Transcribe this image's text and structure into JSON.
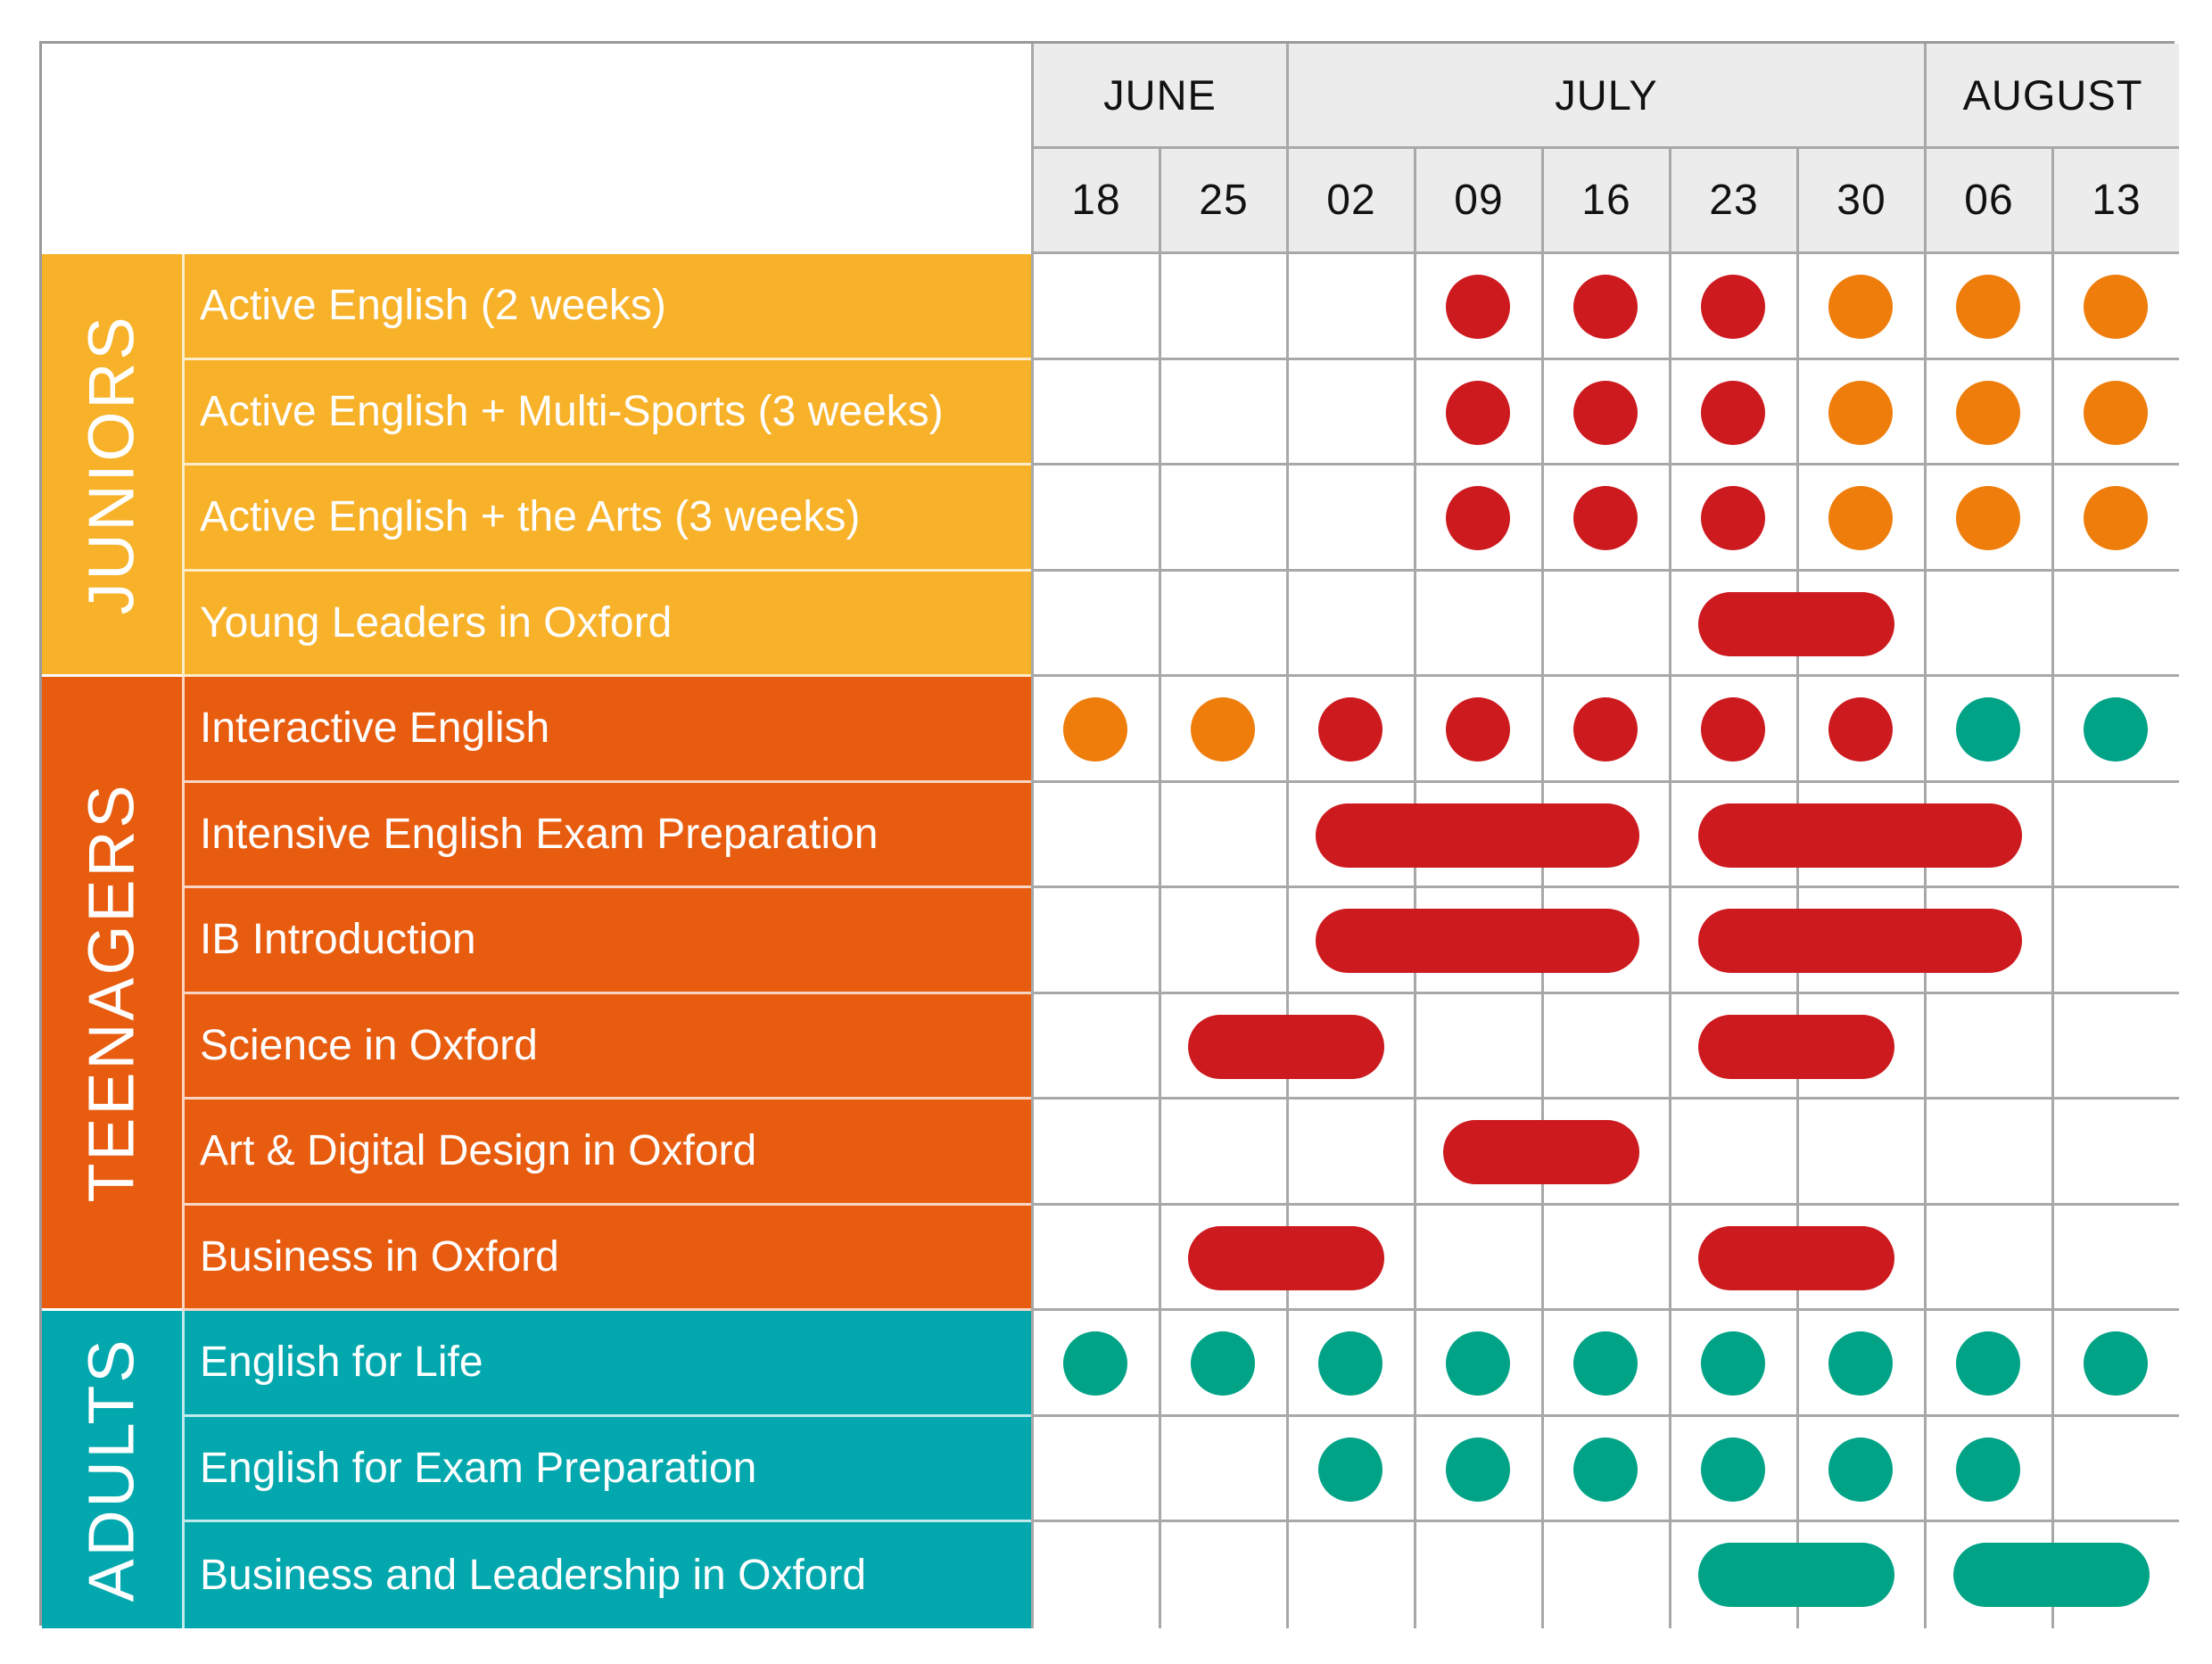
{
  "months": [
    {
      "label": "JUNE",
      "span": 2
    },
    {
      "label": "JULY",
      "span": 5
    },
    {
      "label": "AUGUST",
      "span": 2
    }
  ],
  "weeks": [
    "18",
    "25",
    "02",
    "09",
    "16",
    "23",
    "30",
    "06",
    "13"
  ],
  "colors": {
    "juniors": "#f7b22a",
    "teenagers": "#e85c10",
    "adults": "#03a8ae",
    "red": "#cc1a1f",
    "orange": "#ee7d0b",
    "green": "#01a387"
  },
  "groups": [
    {
      "label": "JUNIORS",
      "color": "juniors",
      "courses": [
        {
          "name": "Active English (2 weeks)",
          "marks": [
            {
              "type": "dot",
              "week": 3,
              "color": "red"
            },
            {
              "type": "dot",
              "week": 4,
              "color": "red"
            },
            {
              "type": "dot",
              "week": 5,
              "color": "red"
            },
            {
              "type": "dot",
              "week": 6,
              "color": "orange"
            },
            {
              "type": "dot",
              "week": 7,
              "color": "orange"
            },
            {
              "type": "dot",
              "week": 8,
              "color": "orange"
            }
          ]
        },
        {
          "name": "Active English + Multi-Sports (3 weeks)",
          "marks": [
            {
              "type": "dot",
              "week": 3,
              "color": "red"
            },
            {
              "type": "dot",
              "week": 4,
              "color": "red"
            },
            {
              "type": "dot",
              "week": 5,
              "color": "red"
            },
            {
              "type": "dot",
              "week": 6,
              "color": "orange"
            },
            {
              "type": "dot",
              "week": 7,
              "color": "orange"
            },
            {
              "type": "dot",
              "week": 8,
              "color": "orange"
            }
          ]
        },
        {
          "name": "Active English + the Arts (3 weeks)",
          "marks": [
            {
              "type": "dot",
              "week": 3,
              "color": "red"
            },
            {
              "type": "dot",
              "week": 4,
              "color": "red"
            },
            {
              "type": "dot",
              "week": 5,
              "color": "red"
            },
            {
              "type": "dot",
              "week": 6,
              "color": "orange"
            },
            {
              "type": "dot",
              "week": 7,
              "color": "orange"
            },
            {
              "type": "dot",
              "week": 8,
              "color": "orange"
            }
          ]
        },
        {
          "name": "Young Leaders in Oxford",
          "marks": [
            {
              "type": "bar",
              "start": 5,
              "end": 6,
              "color": "red"
            }
          ]
        }
      ]
    },
    {
      "label": "TEENAGERS",
      "color": "teenagers",
      "courses": [
        {
          "name": "Interactive English",
          "marks": [
            {
              "type": "dot",
              "week": 0,
              "color": "orange"
            },
            {
              "type": "dot",
              "week": 1,
              "color": "orange"
            },
            {
              "type": "dot",
              "week": 2,
              "color": "red"
            },
            {
              "type": "dot",
              "week": 3,
              "color": "red"
            },
            {
              "type": "dot",
              "week": 4,
              "color": "red"
            },
            {
              "type": "dot",
              "week": 5,
              "color": "red"
            },
            {
              "type": "dot",
              "week": 6,
              "color": "red"
            },
            {
              "type": "dot",
              "week": 7,
              "color": "green"
            },
            {
              "type": "dot",
              "week": 8,
              "color": "green"
            }
          ]
        },
        {
          "name": "Intensive English Exam Preparation",
          "marks": [
            {
              "type": "bar",
              "start": 2,
              "end": 4,
              "color": "red"
            },
            {
              "type": "bar",
              "start": 5,
              "end": 7,
              "color": "red"
            }
          ]
        },
        {
          "name": "IB Introduction",
          "marks": [
            {
              "type": "bar",
              "start": 2,
              "end": 4,
              "color": "red"
            },
            {
              "type": "bar",
              "start": 5,
              "end": 7,
              "color": "red"
            }
          ]
        },
        {
          "name": "Science in Oxford",
          "marks": [
            {
              "type": "bar",
              "start": 1,
              "end": 2,
              "color": "red"
            },
            {
              "type": "bar",
              "start": 5,
              "end": 6,
              "color": "red"
            }
          ]
        },
        {
          "name": "Art & Digital Design in Oxford",
          "marks": [
            {
              "type": "bar",
              "start": 3,
              "end": 4,
              "color": "red"
            }
          ]
        },
        {
          "name": "Business in Oxford",
          "marks": [
            {
              "type": "bar",
              "start": 1,
              "end": 2,
              "color": "red"
            },
            {
              "type": "bar",
              "start": 5,
              "end": 6,
              "color": "red"
            }
          ]
        }
      ]
    },
    {
      "label": "ADULTS",
      "color": "adults",
      "courses": [
        {
          "name": "English for Life",
          "marks": [
            {
              "type": "dot",
              "week": 0,
              "color": "green"
            },
            {
              "type": "dot",
              "week": 1,
              "color": "green"
            },
            {
              "type": "dot",
              "week": 2,
              "color": "green"
            },
            {
              "type": "dot",
              "week": 3,
              "color": "green"
            },
            {
              "type": "dot",
              "week": 4,
              "color": "green"
            },
            {
              "type": "dot",
              "week": 5,
              "color": "green"
            },
            {
              "type": "dot",
              "week": 6,
              "color": "green"
            },
            {
              "type": "dot",
              "week": 7,
              "color": "green"
            },
            {
              "type": "dot",
              "week": 8,
              "color": "green"
            }
          ]
        },
        {
          "name": "English for Exam Preparation",
          "marks": [
            {
              "type": "dot",
              "week": 2,
              "color": "green"
            },
            {
              "type": "dot",
              "week": 3,
              "color": "green"
            },
            {
              "type": "dot",
              "week": 4,
              "color": "green"
            },
            {
              "type": "dot",
              "week": 5,
              "color": "green"
            },
            {
              "type": "dot",
              "week": 6,
              "color": "green"
            },
            {
              "type": "dot",
              "week": 7,
              "color": "green"
            }
          ]
        },
        {
          "name": "Business and Leadership in Oxford",
          "marks": [
            {
              "type": "bar",
              "start": 5,
              "end": 6,
              "color": "green"
            },
            {
              "type": "bar",
              "start": 7,
              "end": 8,
              "color": "green"
            }
          ]
        }
      ]
    }
  ]
}
